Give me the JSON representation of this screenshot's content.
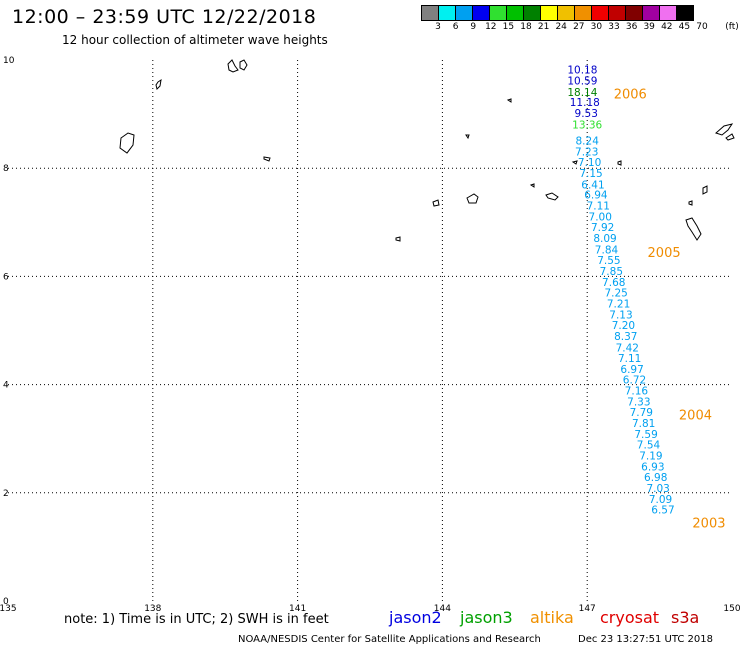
{
  "header": {
    "title": "12:00 – 23:59 UTC 12/22/2018",
    "subtitle": "12 hour collection of altimeter wave heights"
  },
  "legend": {
    "unit": "(ft)",
    "bins": [
      {
        "label": "3",
        "color": "#808080"
      },
      {
        "label": "6",
        "color": "#00f0f0"
      },
      {
        "label": "9",
        "color": "#00a0f0"
      },
      {
        "label": "12",
        "color": "#0000f0"
      },
      {
        "label": "15",
        "color": "#30e030"
      },
      {
        "label": "18",
        "color": "#00c000"
      },
      {
        "label": "21",
        "color": "#008000"
      },
      {
        "label": "24",
        "color": "#ffff00"
      },
      {
        "label": "27",
        "color": "#f0c000"
      },
      {
        "label": "30",
        "color": "#f09000"
      },
      {
        "label": "33",
        "color": "#f00000"
      },
      {
        "label": "36",
        "color": "#c00000"
      },
      {
        "label": "39",
        "color": "#800000"
      },
      {
        "label": "42",
        "color": "#a000a0"
      },
      {
        "label": "45",
        "color": "#f070f0"
      },
      {
        "label": "70",
        "color": "#000000"
      }
    ]
  },
  "map": {
    "lon_range": [
      135,
      150
    ],
    "lat_range": [
      0,
      10
    ],
    "lon_ticks": [
      "135",
      "138",
      "141",
      "144",
      "147",
      "150"
    ],
    "lat_ticks": [
      "0",
      "2",
      "4",
      "6",
      "8",
      "10"
    ],
    "grid": true,
    "wave_readings": [
      {
        "lon": 146.9,
        "lat": 9.82,
        "text": "10.18",
        "color": "#0000c8"
      },
      {
        "lon": 146.9,
        "lat": 9.62,
        "text": "10.59",
        "color": "#0000c8"
      },
      {
        "lon": 146.9,
        "lat": 9.41,
        "text": "18.14",
        "color": "#008000"
      },
      {
        "lon": 146.95,
        "lat": 9.22,
        "text": "11.18",
        "color": "#0000c8"
      },
      {
        "lon": 146.98,
        "lat": 9.02,
        "text": "9.53",
        "color": "#0000c8"
      },
      {
        "lon": 147.0,
        "lat": 8.81,
        "text": "13.36",
        "color": "#30e030"
      },
      {
        "lon": 147.0,
        "lat": 8.51,
        "text": "8.24",
        "color": "#00a0f0"
      },
      {
        "lon": 146.99,
        "lat": 8.31,
        "text": "7.23",
        "color": "#00a0f0"
      },
      {
        "lon": 147.05,
        "lat": 8.11,
        "text": "7.10",
        "color": "#00a0f0"
      },
      {
        "lon": 147.08,
        "lat": 7.91,
        "text": "7.15",
        "color": "#00a0f0"
      },
      {
        "lon": 147.12,
        "lat": 7.7,
        "text": "6.41",
        "color": "#00a0f0"
      },
      {
        "lon": 147.18,
        "lat": 7.51,
        "text": "6.94",
        "color": "#00a0f0"
      },
      {
        "lon": 147.23,
        "lat": 7.31,
        "text": "7.11",
        "color": "#00a0f0"
      },
      {
        "lon": 147.27,
        "lat": 7.11,
        "text": "7.00",
        "color": "#00a0f0"
      },
      {
        "lon": 147.32,
        "lat": 6.91,
        "text": "7.92",
        "color": "#00a0f0"
      },
      {
        "lon": 147.37,
        "lat": 6.71,
        "text": "8.09",
        "color": "#00a0f0"
      },
      {
        "lon": 147.4,
        "lat": 6.5,
        "text": "7.84",
        "color": "#00a0f0"
      },
      {
        "lon": 147.45,
        "lat": 6.3,
        "text": "7.55",
        "color": "#00a0f0"
      },
      {
        "lon": 147.5,
        "lat": 6.1,
        "text": "7.85",
        "color": "#00a0f0"
      },
      {
        "lon": 147.55,
        "lat": 5.9,
        "text": "7.68",
        "color": "#00a0f0"
      },
      {
        "lon": 147.6,
        "lat": 5.7,
        "text": "7.25",
        "color": "#00a0f0"
      },
      {
        "lon": 147.65,
        "lat": 5.5,
        "text": "7.21",
        "color": "#00a0f0"
      },
      {
        "lon": 147.7,
        "lat": 5.3,
        "text": "7.13",
        "color": "#00a0f0"
      },
      {
        "lon": 147.75,
        "lat": 5.1,
        "text": "7.20",
        "color": "#00a0f0"
      },
      {
        "lon": 147.8,
        "lat": 4.9,
        "text": "8.37",
        "color": "#00a0f0"
      },
      {
        "lon": 147.83,
        "lat": 4.69,
        "text": "7.42",
        "color": "#00a0f0"
      },
      {
        "lon": 147.88,
        "lat": 4.49,
        "text": "7.11",
        "color": "#00a0f0"
      },
      {
        "lon": 147.93,
        "lat": 4.29,
        "text": "6.97",
        "color": "#00a0f0"
      },
      {
        "lon": 147.98,
        "lat": 4.09,
        "text": "6.72",
        "color": "#00a0f0"
      },
      {
        "lon": 148.02,
        "lat": 3.89,
        "text": "7.16",
        "color": "#00a0f0"
      },
      {
        "lon": 148.07,
        "lat": 3.69,
        "text": "7.33",
        "color": "#00a0f0"
      },
      {
        "lon": 148.12,
        "lat": 3.49,
        "text": "7.79",
        "color": "#00a0f0"
      },
      {
        "lon": 148.17,
        "lat": 3.29,
        "text": "7.81",
        "color": "#00a0f0"
      },
      {
        "lon": 148.22,
        "lat": 3.09,
        "text": "7.59",
        "color": "#00a0f0"
      },
      {
        "lon": 148.27,
        "lat": 2.89,
        "text": "7.54",
        "color": "#00a0f0"
      },
      {
        "lon": 148.32,
        "lat": 2.69,
        "text": "7.19",
        "color": "#00a0f0"
      },
      {
        "lon": 148.36,
        "lat": 2.49,
        "text": "6.93",
        "color": "#00a0f0"
      },
      {
        "lon": 148.42,
        "lat": 2.29,
        "text": "6.98",
        "color": "#00a0f0"
      },
      {
        "lon": 148.47,
        "lat": 2.09,
        "text": "7.03",
        "color": "#00a0f0"
      },
      {
        "lon": 148.52,
        "lat": 1.89,
        "text": "7.09",
        "color": "#00a0f0"
      },
      {
        "lon": 148.57,
        "lat": 1.69,
        "text": "6.57",
        "color": "#00a0f0"
      }
    ],
    "year_labels": [
      {
        "lon": 147.55,
        "lat": 9.38,
        "text": "2006"
      },
      {
        "lon": 148.25,
        "lat": 6.45,
        "text": "2005"
      },
      {
        "lon": 148.9,
        "lat": 3.45,
        "text": "2004"
      },
      {
        "lon": 149.18,
        "lat": 1.45,
        "text": "2003"
      }
    ]
  },
  "footer": {
    "note": "note:  1) Time is in UTC;  2) SWH is in feet",
    "satellites": [
      {
        "name": "jason2",
        "color": "#0000e0"
      },
      {
        "name": "jason3",
        "color": "#00a000"
      },
      {
        "name": "altika",
        "color": "#f09000"
      },
      {
        "name": "cryosat",
        "color": "#e00000"
      },
      {
        "name": "s3a",
        "color": "#c00000"
      }
    ],
    "credit": "NOAA/NESDIS Center for Satellite Applications and Research",
    "timestamp": "Dec 23 13:27:51 UTC 2018"
  }
}
